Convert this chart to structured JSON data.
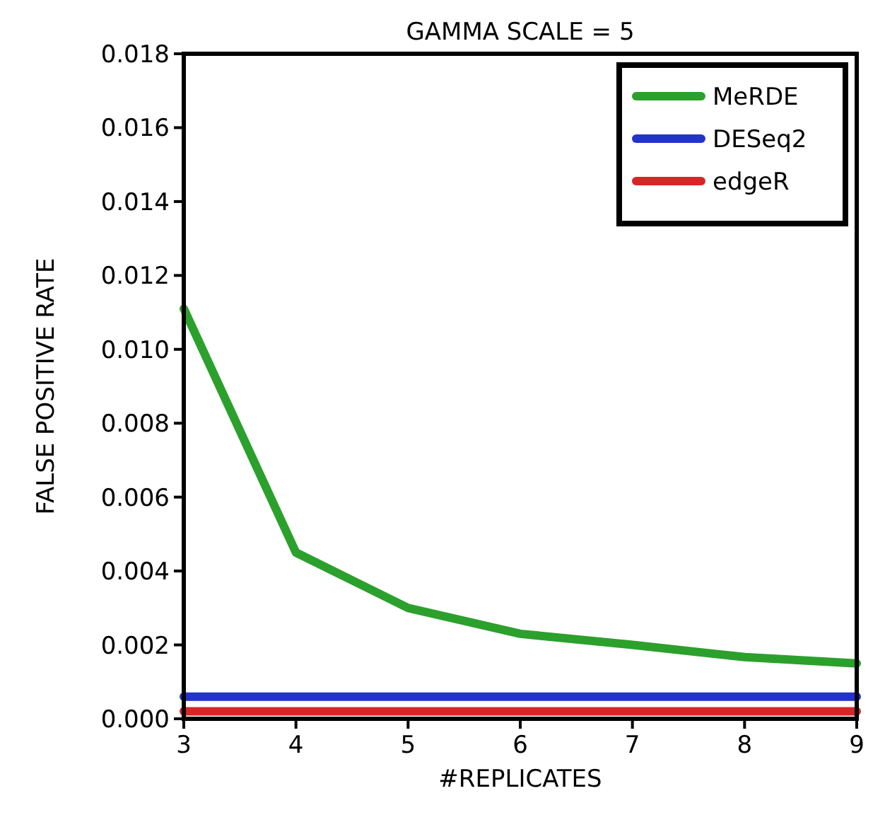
{
  "chart_data": {
    "type": "line",
    "title": "GAMMA SCALE = 5",
    "xlabel": "#REPLICATES",
    "ylabel": "FALSE POSITIVE RATE",
    "x": [
      3,
      4,
      5,
      6,
      7,
      8,
      9
    ],
    "series": [
      {
        "name": "MeRDE",
        "color": "#2ca02c",
        "values": [
          0.0111,
          0.0045,
          0.003,
          0.0023,
          0.002,
          0.00167,
          0.0015
        ]
      },
      {
        "name": "DESeq2",
        "color": "#2233cc",
        "values": [
          0.0006,
          0.0006,
          0.0006,
          0.0006,
          0.0006,
          0.0006,
          0.0006
        ]
      },
      {
        "name": "edgeR",
        "color": "#d62728",
        "values": [
          0.0002,
          0.0002,
          0.0002,
          0.0002,
          0.0002,
          0.0002,
          0.0002
        ]
      }
    ],
    "xlim": [
      3,
      9
    ],
    "xticks": [
      3,
      4,
      5,
      6,
      7,
      8,
      9
    ],
    "ylim": [
      0,
      0.018
    ],
    "yticks": [
      {
        "value": 0,
        "label": "0.000"
      },
      {
        "value": 0.002,
        "label": "0.002"
      },
      {
        "value": 0.004,
        "label": "0.004"
      },
      {
        "value": 0.006,
        "label": "0.006"
      },
      {
        "value": 0.008,
        "label": "0.008"
      },
      {
        "value": 0.01,
        "label": "0.010"
      },
      {
        "value": 0.012,
        "label": "0.012"
      },
      {
        "value": 0.014,
        "label": "0.014"
      },
      {
        "value": 0.016,
        "label": "0.016"
      },
      {
        "value": 0.018,
        "label": "0.018"
      }
    ],
    "grid": false,
    "legend": "top right",
    "marker": "none",
    "line_style": "solid"
  }
}
